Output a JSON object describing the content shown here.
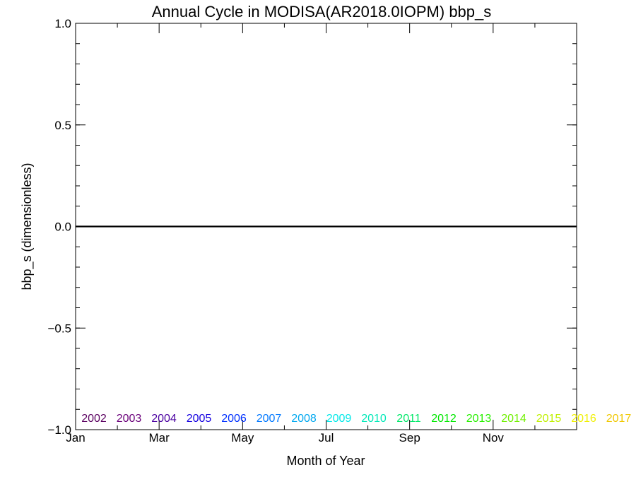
{
  "chart_data": {
    "type": "line",
    "title": "Annual Cycle in MODISA(AR2018.0IOPM) bbp_s",
    "xlabel": "Month of Year",
    "ylabel": "bbp_s (dimensionless)",
    "xlim": [
      0,
      12
    ],
    "ylim": [
      -1.0,
      1.0
    ],
    "x_ticks": [
      {
        "label": "Jan",
        "value": 0
      },
      {
        "label": "Mar",
        "value": 2
      },
      {
        "label": "May",
        "value": 4
      },
      {
        "label": "Jul",
        "value": 6
      },
      {
        "label": "Sep",
        "value": 8
      },
      {
        "label": "Nov",
        "value": 10
      }
    ],
    "y_ticks": [
      {
        "label": "1.0",
        "value": 1.0
      },
      {
        "label": "0.5",
        "value": 0.5
      },
      {
        "label": "0.0",
        "value": 0.0
      },
      {
        "label": "−0.5",
        "value": -0.5
      },
      {
        "label": "−1.0",
        "value": -1.0
      }
    ],
    "y_minor_step": 0.1,
    "grid": false,
    "legend_placement": "bottom, inside plot, single row",
    "series": [
      {
        "name": "2002",
        "color": "#5a0060",
        "values": []
      },
      {
        "name": "2003",
        "color": "#6a007a",
        "values": []
      },
      {
        "name": "2004",
        "color": "#4a00a0",
        "values": []
      },
      {
        "name": "2005",
        "color": "#1400e0",
        "values": []
      },
      {
        "name": "2006",
        "color": "#0030ff",
        "values": []
      },
      {
        "name": "2007",
        "color": "#0078ff",
        "values": []
      },
      {
        "name": "2008",
        "color": "#00a8f0",
        "values": []
      },
      {
        "name": "2009",
        "color": "#00e8e8",
        "values": []
      },
      {
        "name": "2010",
        "color": "#00e8b8",
        "values": []
      },
      {
        "name": "2011",
        "color": "#00e868",
        "values": []
      },
      {
        "name": "2012",
        "color": "#00e800",
        "values": []
      },
      {
        "name": "2013",
        "color": "#28f000",
        "values": []
      },
      {
        "name": "2014",
        "color": "#70f000",
        "values": []
      },
      {
        "name": "2015",
        "color": "#c0f000",
        "values": []
      },
      {
        "name": "2016",
        "color": "#f0f000",
        "values": []
      },
      {
        "name": "2017",
        "color": "#f0c800",
        "values": []
      }
    ],
    "reference_line": {
      "y": 0.0,
      "color": "#000000"
    }
  }
}
